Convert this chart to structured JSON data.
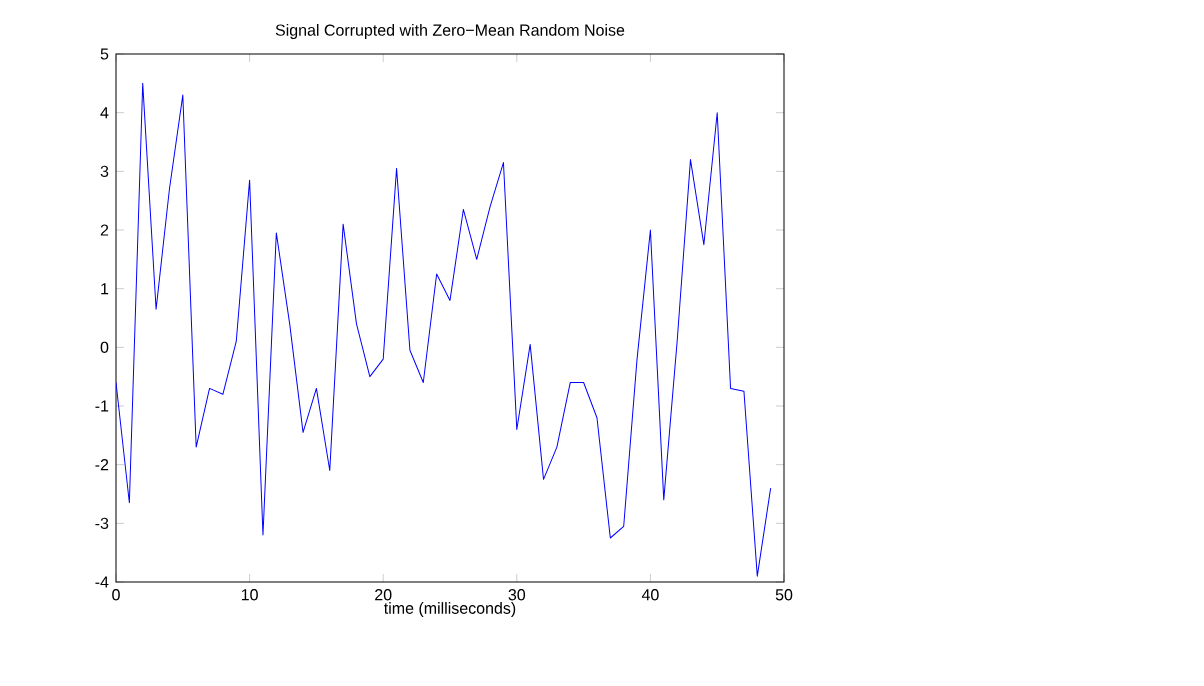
{
  "chart_data": {
    "type": "line",
    "title": "Signal Corrupted with Zero−Mean Random Noise",
    "xlabel": "time (milliseconds)",
    "x": [
      0,
      1,
      2,
      3,
      4,
      5,
      6,
      7,
      8,
      9,
      10,
      11,
      12,
      13,
      14,
      15,
      16,
      17,
      18,
      19,
      20,
      21,
      22,
      23,
      24,
      25,
      26,
      27,
      28,
      29,
      30,
      31,
      32,
      33,
      34,
      35,
      36,
      37,
      38,
      39,
      40,
      41,
      42,
      43,
      44,
      45,
      46,
      47,
      48,
      49
    ],
    "series": [
      {
        "color": "#0000ff",
        "values": [
          -0.6,
          -2.65,
          4.5,
          0.65,
          2.7,
          4.3,
          -1.7,
          -0.7,
          -0.8,
          0.1,
          2.85,
          -3.2,
          1.95,
          0.4,
          -1.45,
          -0.7,
          -2.1,
          2.1,
          0.4,
          -0.5,
          -0.2,
          3.05,
          -0.05,
          -0.6,
          1.25,
          0.8,
          2.35,
          1.5,
          2.4,
          3.15,
          -1.4,
          0.05,
          -2.25,
          -1.7,
          -0.6,
          -0.6,
          -1.2,
          -3.25,
          -3.05,
          -0.2,
          2.0,
          -2.6,
          0.1,
          3.2,
          1.75,
          4.0,
          -0.7,
          -0.75,
          -3.9,
          -2.4
        ]
      }
    ],
    "xlim": [
      0,
      50
    ],
    "xticks": [
      0,
      10,
      20,
      30,
      40,
      50
    ],
    "ylim": [
      -4,
      5
    ],
    "yticks": [
      -4,
      -3,
      -2,
      -1,
      0,
      1,
      2,
      3,
      4,
      5
    ],
    "grid": false,
    "marker": "none",
    "line_style": "solid"
  }
}
